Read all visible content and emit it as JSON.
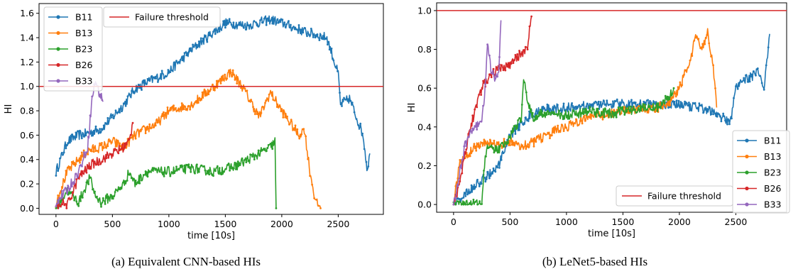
{
  "chart_data": [
    {
      "type": "line",
      "caption": "(a) Equivalent CNN-based HIs",
      "xlabel": "time [10s]",
      "ylabel": "HI",
      "xlim": [
        -150,
        2900
      ],
      "ylim": [
        -0.05,
        1.68
      ],
      "xticks": [
        0,
        500,
        1000,
        1500,
        2000,
        2500
      ],
      "yticks": [
        0.0,
        0.2,
        0.4,
        0.6,
        0.8,
        1.0,
        1.2,
        1.4,
        1.6
      ],
      "grid": false,
      "legend_placement": "top-left",
      "threshold": {
        "name": "Failure threshold",
        "value": 1.0,
        "color": "#d62728"
      },
      "series": [
        {
          "name": "B11",
          "color": "#1f77b4",
          "end": 2780,
          "points": [
            [
              0,
              0.3
            ],
            [
              100,
              0.55
            ],
            [
              200,
              0.6
            ],
            [
              300,
              0.62
            ],
            [
              400,
              0.65
            ],
            [
              500,
              0.75
            ],
            [
              600,
              0.85
            ],
            [
              700,
              0.98
            ],
            [
              800,
              1.03
            ],
            [
              1000,
              1.12
            ],
            [
              1200,
              1.3
            ],
            [
              1400,
              1.45
            ],
            [
              1500,
              1.52
            ],
            [
              1700,
              1.5
            ],
            [
              1900,
              1.55
            ],
            [
              2000,
              1.52
            ],
            [
              2200,
              1.45
            ],
            [
              2400,
              1.4
            ],
            [
              2500,
              1.1
            ],
            [
              2520,
              0.85
            ],
            [
              2600,
              0.9
            ],
            [
              2680,
              0.7
            ],
            [
              2720,
              0.6
            ],
            [
              2760,
              0.3
            ],
            [
              2780,
              0.45
            ]
          ]
        },
        {
          "name": "B13",
          "color": "#ff7f0e",
          "end": 2350,
          "points": [
            [
              0,
              0.05
            ],
            [
              100,
              0.3
            ],
            [
              200,
              0.4
            ],
            [
              300,
              0.48
            ],
            [
              400,
              0.5
            ],
            [
              500,
              0.55
            ],
            [
              600,
              0.5
            ],
            [
              700,
              0.6
            ],
            [
              800,
              0.65
            ],
            [
              900,
              0.7
            ],
            [
              1000,
              0.8
            ],
            [
              1200,
              0.85
            ],
            [
              1400,
              1.0
            ],
            [
              1550,
              1.12
            ],
            [
              1650,
              1.0
            ],
            [
              1800,
              0.75
            ],
            [
              1900,
              0.95
            ],
            [
              2000,
              0.8
            ],
            [
              2150,
              0.6
            ],
            [
              2200,
              0.65
            ],
            [
              2250,
              0.3
            ],
            [
              2300,
              0.05
            ],
            [
              2350,
              0.0
            ]
          ]
        },
        {
          "name": "B23",
          "color": "#2ca02c",
          "end": 1950,
          "points": [
            [
              0,
              0.0
            ],
            [
              100,
              0.15
            ],
            [
              150,
              0.1
            ],
            [
              200,
              0.05
            ],
            [
              300,
              0.25
            ],
            [
              350,
              0.1
            ],
            [
              400,
              0.05
            ],
            [
              500,
              0.1
            ],
            [
              600,
              0.2
            ],
            [
              650,
              0.3
            ],
            [
              700,
              0.2
            ],
            [
              800,
              0.3
            ],
            [
              1000,
              0.3
            ],
            [
              1200,
              0.33
            ],
            [
              1400,
              0.3
            ],
            [
              1600,
              0.35
            ],
            [
              1800,
              0.45
            ],
            [
              1900,
              0.5
            ],
            [
              1940,
              0.55
            ],
            [
              1950,
              0.0
            ]
          ]
        },
        {
          "name": "B26",
          "color": "#d62728",
          "end": 680,
          "points": [
            [
              0,
              0.0
            ],
            [
              50,
              0.05
            ],
            [
              100,
              0.02
            ],
            [
              200,
              0.25
            ],
            [
              300,
              0.35
            ],
            [
              400,
              0.4
            ],
            [
              500,
              0.45
            ],
            [
              600,
              0.5
            ],
            [
              650,
              0.55
            ],
            [
              680,
              0.7
            ]
          ]
        },
        {
          "name": "B33",
          "color": "#9467bd",
          "end": 420,
          "points": [
            [
              0,
              0.05
            ],
            [
              100,
              0.15
            ],
            [
              200,
              0.3
            ],
            [
              280,
              0.5
            ],
            [
              320,
              0.9
            ],
            [
              350,
              1.05
            ],
            [
              380,
              0.95
            ],
            [
              420,
              0.88
            ]
          ]
        }
      ]
    },
    {
      "type": "line",
      "caption": "(b) LeNet5-based HIs",
      "xlabel": "time [10s]",
      "ylabel": "HI",
      "xlim": [
        -150,
        2950
      ],
      "ylim": [
        -0.04,
        1.04
      ],
      "xticks": [
        0,
        500,
        1000,
        1500,
        2000,
        2500
      ],
      "yticks": [
        0.0,
        0.2,
        0.4,
        0.6,
        0.8,
        1.0
      ],
      "grid": false,
      "legend_placement": "bottom-right",
      "threshold": {
        "name": "Failure threshold",
        "value": 1.0,
        "color": "#d62728"
      },
      "series": [
        {
          "name": "B11",
          "color": "#1f77b4",
          "end": 2800,
          "points": [
            [
              0,
              0.0
            ],
            [
              100,
              0.05
            ],
            [
              200,
              0.1
            ],
            [
              300,
              0.15
            ],
            [
              400,
              0.2
            ],
            [
              500,
              0.35
            ],
            [
              600,
              0.42
            ],
            [
              700,
              0.47
            ],
            [
              800,
              0.49
            ],
            [
              1000,
              0.5
            ],
            [
              1200,
              0.51
            ],
            [
              1400,
              0.52
            ],
            [
              1600,
              0.52
            ],
            [
              1800,
              0.52
            ],
            [
              2000,
              0.51
            ],
            [
              2200,
              0.5
            ],
            [
              2300,
              0.48
            ],
            [
              2400,
              0.44
            ],
            [
              2450,
              0.42
            ],
            [
              2500,
              0.6
            ],
            [
              2600,
              0.65
            ],
            [
              2700,
              0.68
            ],
            [
              2750,
              0.6
            ],
            [
              2800,
              0.88
            ]
          ]
        },
        {
          "name": "B13",
          "color": "#ff7f0e",
          "end": 2330,
          "points": [
            [
              0,
              0.0
            ],
            [
              50,
              0.2
            ],
            [
              100,
              0.25
            ],
            [
              200,
              0.3
            ],
            [
              300,
              0.32
            ],
            [
              400,
              0.3
            ],
            [
              500,
              0.33
            ],
            [
              600,
              0.3
            ],
            [
              700,
              0.32
            ],
            [
              800,
              0.35
            ],
            [
              900,
              0.38
            ],
            [
              1000,
              0.4
            ],
            [
              1200,
              0.45
            ],
            [
              1400,
              0.47
            ],
            [
              1600,
              0.49
            ],
            [
              1800,
              0.5
            ],
            [
              1900,
              0.52
            ],
            [
              2000,
              0.6
            ],
            [
              2100,
              0.75
            ],
            [
              2150,
              0.88
            ],
            [
              2200,
              0.8
            ],
            [
              2250,
              0.9
            ],
            [
              2300,
              0.7
            ],
            [
              2330,
              0.5
            ]
          ]
        },
        {
          "name": "B23",
          "color": "#2ca02c",
          "end": 1950,
          "points": [
            [
              0,
              0.0
            ],
            [
              100,
              0.0
            ],
            [
              200,
              0.0
            ],
            [
              250,
              0.0
            ],
            [
              280,
              0.25
            ],
            [
              300,
              0.3
            ],
            [
              400,
              0.28
            ],
            [
              500,
              0.35
            ],
            [
              600,
              0.45
            ],
            [
              620,
              0.65
            ],
            [
              650,
              0.55
            ],
            [
              700,
              0.45
            ],
            [
              800,
              0.47
            ],
            [
              1000,
              0.46
            ],
            [
              1200,
              0.48
            ],
            [
              1400,
              0.47
            ],
            [
              1600,
              0.49
            ],
            [
              1800,
              0.5
            ],
            [
              1900,
              0.55
            ],
            [
              1950,
              0.6
            ]
          ]
        },
        {
          "name": "B26",
          "color": "#d62728",
          "end": 690,
          "points": [
            [
              0,
              0.0
            ],
            [
              50,
              0.1
            ],
            [
              100,
              0.25
            ],
            [
              150,
              0.4
            ],
            [
              200,
              0.5
            ],
            [
              250,
              0.6
            ],
            [
              300,
              0.65
            ],
            [
              400,
              0.7
            ],
            [
              500,
              0.72
            ],
            [
              600,
              0.78
            ],
            [
              650,
              0.8
            ],
            [
              690,
              0.97
            ]
          ]
        },
        {
          "name": "B33",
          "color": "#9467bd",
          "end": 420,
          "points": [
            [
              0,
              0.0
            ],
            [
              50,
              0.15
            ],
            [
              100,
              0.3
            ],
            [
              150,
              0.38
            ],
            [
              200,
              0.4
            ],
            [
              250,
              0.42
            ],
            [
              280,
              0.6
            ],
            [
              300,
              0.82
            ],
            [
              330,
              0.7
            ],
            [
              370,
              0.65
            ],
            [
              400,
              0.7
            ],
            [
              420,
              0.95
            ]
          ]
        }
      ]
    }
  ]
}
